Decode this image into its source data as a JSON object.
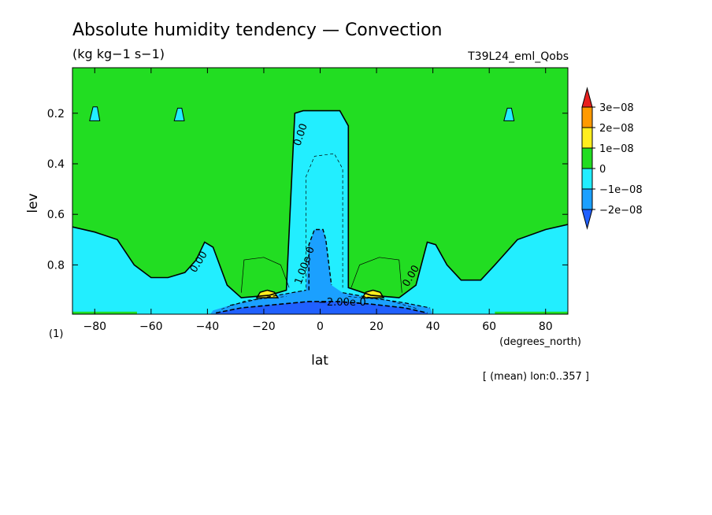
{
  "chart_data": {
    "type": "contour",
    "title": "Absolute humidity tendency — Convection",
    "units": "(kg kg−1 s−1)",
    "run_label": "T39L24_eml_Qobs",
    "xlabel": "lat",
    "x_units": "(degrees_north)",
    "ylabel": "lev",
    "panel_label": "(1)",
    "mean_note": "[ (mean) lon:0..357 ]",
    "xlim": [
      -87.9,
      87.9
    ],
    "ylim": [
      0.995,
      0.02
    ],
    "x_ticks": [
      -80,
      -60,
      -40,
      -20,
      0,
      20,
      40,
      60,
      80
    ],
    "x_tick_labels": [
      "−80",
      "−60",
      "−40",
      "−20",
      "0",
      "20",
      "40",
      "60",
      "80"
    ],
    "y_ticks": [
      0.2,
      0.4,
      0.6,
      0.8
    ],
    "y_tick_labels": [
      "0.2",
      "0.4",
      "0.6",
      "0.8"
    ],
    "contour_labels": [
      "0.00",
      "0.00",
      "0.00",
      "1.00e-0",
      "−2.00e-0"
    ],
    "colorbar": {
      "levels": [
        3e-08,
        2e-08,
        1e-08,
        0,
        -1e-08,
        -2e-08
      ],
      "labels": [
        "3e−08",
        "2e−08",
        "1e−08",
        "0",
        "−1e−08",
        "−2e−08"
      ],
      "colors": {
        "above": "#e8201e",
        "c2": "#ff9a00",
        "c1": "#ffee1e",
        "c0": "#22dd22",
        "cn1": "#22eeff",
        "cn2": "#1ba0ff",
        "below": "#2060ff"
      }
    },
    "regions": {
      "zero_contour_outer": [
        [
          -87.9,
          0.65
        ],
        [
          -80,
          0.67
        ],
        [
          -72,
          0.7
        ],
        [
          -66,
          0.8
        ],
        [
          -60,
          0.85
        ],
        [
          -54,
          0.85
        ],
        [
          -48,
          0.83
        ],
        [
          -44,
          0.78
        ],
        [
          -41,
          0.71
        ],
        [
          -38,
          0.73
        ],
        [
          -33,
          0.88
        ],
        [
          -28,
          0.93
        ],
        [
          -18,
          0.92
        ],
        [
          -12,
          0.9
        ],
        [
          -9,
          0.2
        ],
        [
          -6,
          0.19
        ],
        [
          7,
          0.19
        ],
        [
          10,
          0.25
        ],
        [
          10,
          0.89
        ],
        [
          18,
          0.92
        ],
        [
          28,
          0.93
        ],
        [
          34,
          0.88
        ],
        [
          38,
          0.71
        ],
        [
          41,
          0.72
        ],
        [
          45,
          0.8
        ],
        [
          50,
          0.86
        ],
        [
          57,
          0.86
        ],
        [
          62,
          0.8
        ],
        [
          70,
          0.7
        ],
        [
          80,
          0.66
        ],
        [
          87.9,
          0.64
        ],
        [
          87.9,
          0.995
        ],
        [
          -87.9,
          0.995
        ]
      ],
      "negative_1": [
        [
          -32,
          0.96
        ],
        [
          -20,
          0.93
        ],
        [
          -10,
          0.91
        ],
        [
          -5,
          0.9
        ],
        [
          -4,
          0.72
        ],
        [
          -2,
          0.66
        ],
        [
          1,
          0.66
        ],
        [
          2,
          0.7
        ],
        [
          4,
          0.88
        ],
        [
          8,
          0.91
        ],
        [
          18,
          0.93
        ],
        [
          30,
          0.95
        ],
        [
          39,
          0.97
        ],
        [
          40,
          0.995
        ],
        [
          -39,
          0.995
        ],
        [
          -38,
          0.98
        ]
      ],
      "negative_2": [
        [
          -37,
          0.99
        ],
        [
          -28,
          0.97
        ],
        [
          -14,
          0.955
        ],
        [
          -4,
          0.945
        ],
        [
          6,
          0.945
        ],
        [
          18,
          0.955
        ],
        [
          30,
          0.97
        ],
        [
          38,
          0.99
        ],
        [
          38,
          0.995
        ],
        [
          -37,
          0.995
        ]
      ],
      "positive_1": [
        {
          "x": [
            -22.5,
            -15
          ],
          "y": [
            0.9,
            0.93
          ]
        },
        {
          "x": [
            15,
            22.5
          ],
          "y": [
            0.9,
            0.93
          ]
        }
      ],
      "small_patches": [
        {
          "x": -80,
          "y": [
            0.175,
            0.23
          ]
        },
        {
          "x": -50,
          "y": [
            0.18,
            0.23
          ]
        },
        {
          "x": 67,
          "y": [
            0.18,
            0.23
          ]
        }
      ]
    }
  }
}
